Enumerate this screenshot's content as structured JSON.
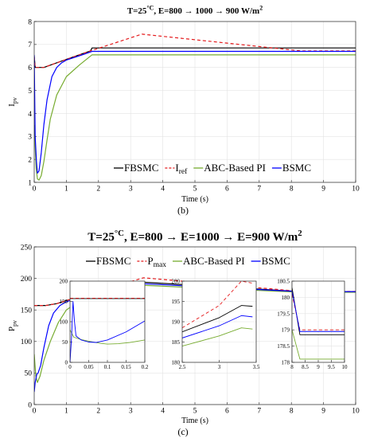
{
  "figure": {
    "captions": [
      "(b)",
      "(c)"
    ]
  },
  "chart_data": [
    {
      "type": "line",
      "title_parts": {
        "prefix": "T=25",
        "sup": "°C",
        "suffix": ", E=800 → 1000 → 900 W/m",
        "sup2": "2"
      },
      "xlabel": "Time (s)",
      "ylabel": "I",
      "ylabel_sub": "pv",
      "xlim": [
        0,
        10
      ],
      "ylim": [
        1,
        8
      ],
      "xticks": [
        0,
        1,
        2,
        3,
        4,
        5,
        6,
        7,
        8,
        9,
        10
      ],
      "yticks": [
        1,
        2,
        3,
        4,
        5,
        6,
        7,
        8
      ],
      "legend_position": "bottom-right",
      "legend": [
        {
          "name": "FBSMC",
          "sub": ""
        },
        {
          "name": "I",
          "sub": "ref"
        },
        {
          "name": "ABC-Based PI",
          "sub": ""
        },
        {
          "name": "BSMC",
          "sub": ""
        }
      ],
      "series": [
        {
          "color": "#000000",
          "dash": "",
          "points": [
            [
              0,
              6.5
            ],
            [
              0.03,
              6.0
            ],
            [
              0.3,
              6.0
            ],
            [
              1.0,
              6.35
            ],
            [
              1.5,
              6.6
            ],
            [
              1.75,
              6.72
            ],
            [
              1.8,
              6.85
            ],
            [
              10,
              6.85
            ]
          ]
        },
        {
          "color": "#e41a1c",
          "dash": "4,3",
          "points": [
            [
              0,
              6.45
            ],
            [
              0.03,
              6.0
            ],
            [
              0.3,
              6.0
            ],
            [
              1.0,
              6.35
            ],
            [
              1.75,
              6.72
            ],
            [
              3.35,
              7.45
            ],
            [
              8.3,
              6.72
            ],
            [
              10,
              6.72
            ]
          ]
        },
        {
          "color": "#77ac30",
          "dash": "",
          "points": [
            [
              0,
              3.5
            ],
            [
              0.06,
              1.6
            ],
            [
              0.1,
              1.15
            ],
            [
              0.15,
              1.1
            ],
            [
              0.22,
              1.3
            ],
            [
              0.3,
              1.9
            ],
            [
              0.4,
              2.85
            ],
            [
              0.5,
              3.75
            ],
            [
              0.7,
              4.8
            ],
            [
              1.0,
              5.6
            ],
            [
              1.4,
              6.1
            ],
            [
              1.8,
              6.55
            ],
            [
              10,
              6.55
            ]
          ]
        },
        {
          "color": "#0000ff",
          "dash": "",
          "points": [
            [
              0,
              6.55
            ],
            [
              0.03,
              3.0
            ],
            [
              0.07,
              1.9
            ],
            [
              0.1,
              1.4
            ],
            [
              0.15,
              1.5
            ],
            [
              0.22,
              2.3
            ],
            [
              0.3,
              3.5
            ],
            [
              0.4,
              4.6
            ],
            [
              0.55,
              5.6
            ],
            [
              0.7,
              6.0
            ],
            [
              0.85,
              6.2
            ],
            [
              1.0,
              6.32
            ],
            [
              1.5,
              6.55
            ],
            [
              1.8,
              6.7
            ],
            [
              10,
              6.7
            ]
          ]
        }
      ]
    },
    {
      "type": "line",
      "title_parts": {
        "prefix": "T=25",
        "sup": "°C",
        "suffix": ", E=800 → E=1000 → E=900 W/m",
        "sup2": "2"
      },
      "xlabel": "Time (s)",
      "ylabel": "P",
      "ylabel_sub": "pv",
      "xlim": [
        0,
        10
      ],
      "ylim": [
        0,
        250
      ],
      "xticks": [
        0,
        1,
        2,
        3,
        4,
        5,
        6,
        7,
        8,
        9,
        10
      ],
      "yticks": [
        0,
        50,
        100,
        150,
        200,
        250
      ],
      "legend_position": "top",
      "legend": [
        {
          "name": "FBSMC",
          "sub": ""
        },
        {
          "name": "P",
          "sub": "max"
        },
        {
          "name": "ABC-Based PI",
          "sub": ""
        },
        {
          "name": "BSMC",
          "sub": ""
        }
      ],
      "series": [
        {
          "color": "#000000",
          "dash": "",
          "points": [
            [
              0,
              157
            ],
            [
              0.35,
              157
            ],
            [
              0.7,
              160
            ],
            [
              1.0,
              165
            ],
            [
              1.5,
              172
            ],
            [
              2.0,
              180
            ],
            [
              2.6,
              187.5
            ],
            [
              3.4,
              194
            ],
            [
              8.3,
              179
            ],
            [
              10,
              179
            ]
          ]
        },
        {
          "color": "#e41a1c",
          "dash": "4,3",
          "points": [
            [
              0,
              157
            ],
            [
              0.35,
              157
            ],
            [
              0.7,
              160
            ],
            [
              1.0,
              165
            ],
            [
              1.5,
              172
            ],
            [
              2.0,
              180
            ],
            [
              2.6,
              189
            ],
            [
              3.4,
              201
            ],
            [
              8.3,
              179.3
            ],
            [
              10,
              179.3
            ]
          ]
        },
        {
          "color": "#77ac30",
          "dash": "",
          "points": [
            [
              0,
              80
            ],
            [
              0.05,
              45
            ],
            [
              0.1,
              35
            ],
            [
              0.18,
              45
            ],
            [
              0.3,
              70
            ],
            [
              0.5,
              100
            ],
            [
              0.75,
              130
            ],
            [
              1.0,
              150
            ],
            [
              1.5,
              168
            ],
            [
              2.0,
              178
            ],
            [
              2.6,
              184
            ],
            [
              3.4,
              189
            ],
            [
              8.3,
              178
            ],
            [
              10,
              178
            ]
          ]
        },
        {
          "color": "#0000ff",
          "dash": "",
          "points": [
            [
              0,
              20
            ],
            [
              0.03,
              35
            ],
            [
              0.08,
              48
            ],
            [
              0.12,
              50
            ],
            [
              0.2,
              62
            ],
            [
              0.3,
              90
            ],
            [
              0.45,
              125
            ],
            [
              0.6,
              145
            ],
            [
              0.8,
              157
            ],
            [
              1.0,
              163
            ],
            [
              1.5,
              171
            ],
            [
              2.0,
              179
            ],
            [
              2.6,
              186
            ],
            [
              3.4,
              191.5
            ],
            [
              8.3,
              179
            ],
            [
              10,
              179
            ]
          ]
        }
      ],
      "insets": [
        {
          "xlim": [
            0,
            0.2
          ],
          "ylim": [
            0,
            200
          ],
          "xticks": [
            0,
            0.05,
            0.1,
            0.15,
            0.2
          ],
          "yticks": [
            0,
            50,
            100,
            150,
            200
          ],
          "series": [
            {
              "color": "#000000",
              "dash": "",
              "points": [
                [
                  0,
                  157
                ],
                [
                  0.2,
                  157
                ]
              ]
            },
            {
              "color": "#e41a1c",
              "dash": "4,3",
              "points": [
                [
                  0,
                  158
                ],
                [
                  0.2,
                  158
                ]
              ]
            },
            {
              "color": "#77ac30",
              "dash": "",
              "points": [
                [
                  0,
                  80
                ],
                [
                  0.01,
                  62
                ],
                [
                  0.03,
                  56
                ],
                [
                  0.05,
                  52
                ],
                [
                  0.08,
                  47
                ],
                [
                  0.1,
                  45
                ],
                [
                  0.13,
                  46
                ],
                [
                  0.16,
                  49
                ],
                [
                  0.2,
                  55
                ]
              ]
            },
            {
              "color": "#0000ff",
              "dash": "",
              "points": [
                [
                  0,
                  0
                ],
                [
                  0.004,
                  60
                ],
                [
                  0.008,
                  150
                ],
                [
                  0.012,
                  100
                ],
                [
                  0.016,
                  65
                ],
                [
                  0.03,
                  55
                ],
                [
                  0.05,
                  50
                ],
                [
                  0.07,
                  49
                ],
                [
                  0.1,
                  55
                ],
                [
                  0.15,
                  75
                ],
                [
                  0.2,
                  102
                ]
              ]
            }
          ]
        },
        {
          "xlim": [
            2.5,
            3.5
          ],
          "ylim": [
            180,
            200
          ],
          "xticks": [
            2.5,
            3,
            3.5
          ],
          "yticks": [
            180,
            185,
            190,
            195,
            200
          ],
          "series": [
            {
              "color": "#000000",
              "dash": "",
              "points": [
                [
                  2.5,
                  187.5
                ],
                [
                  3.0,
                  191
                ],
                [
                  3.3,
                  194
                ],
                [
                  3.45,
                  193.8
                ]
              ]
            },
            {
              "color": "#e41a1c",
              "dash": "4,3",
              "points": [
                [
                  2.5,
                  188.5
                ],
                [
                  3.0,
                  194
                ],
                [
                  3.3,
                  200
                ],
                [
                  3.45,
                  199.5
                ]
              ]
            },
            {
              "color": "#77ac30",
              "dash": "",
              "points": [
                [
                  2.5,
                  184
                ],
                [
                  3.0,
                  186.5
                ],
                [
                  3.3,
                  188.5
                ],
                [
                  3.45,
                  188.2
                ]
              ]
            },
            {
              "color": "#0000ff",
              "dash": "",
              "points": [
                [
                  2.5,
                  186
                ],
                [
                  3.0,
                  189
                ],
                [
                  3.3,
                  191.5
                ],
                [
                  3.45,
                  191.2
                ]
              ]
            }
          ]
        },
        {
          "xlim": [
            8,
            10
          ],
          "ylim": [
            178,
            180.5
          ],
          "xticks": [
            8,
            8.5,
            9,
            9.5,
            10
          ],
          "yticks": [
            178,
            178.5,
            179,
            179.5,
            180,
            180.5
          ],
          "series": [
            {
              "color": "#000000",
              "dash": "",
              "points": [
                [
                  8.0,
                  180.3
                ],
                [
                  8.3,
                  178.85
                ],
                [
                  10,
                  178.85
                ]
              ]
            },
            {
              "color": "#e41a1c",
              "dash": "4,3",
              "points": [
                [
                  8.0,
                  180.1
                ],
                [
                  8.3,
                  179.0
                ],
                [
                  10,
                  179.0
                ]
              ]
            },
            {
              "color": "#77ac30",
              "dash": "",
              "points": [
                [
                  8.0,
                  179.0
                ],
                [
                  8.3,
                  178.1
                ],
                [
                  10,
                  178.1
                ]
              ]
            },
            {
              "color": "#0000ff",
              "dash": "",
              "points": [
                [
                  8.0,
                  180.2
                ],
                [
                  8.3,
                  178.95
                ],
                [
                  10,
                  178.95
                ]
              ]
            }
          ]
        }
      ]
    }
  ]
}
